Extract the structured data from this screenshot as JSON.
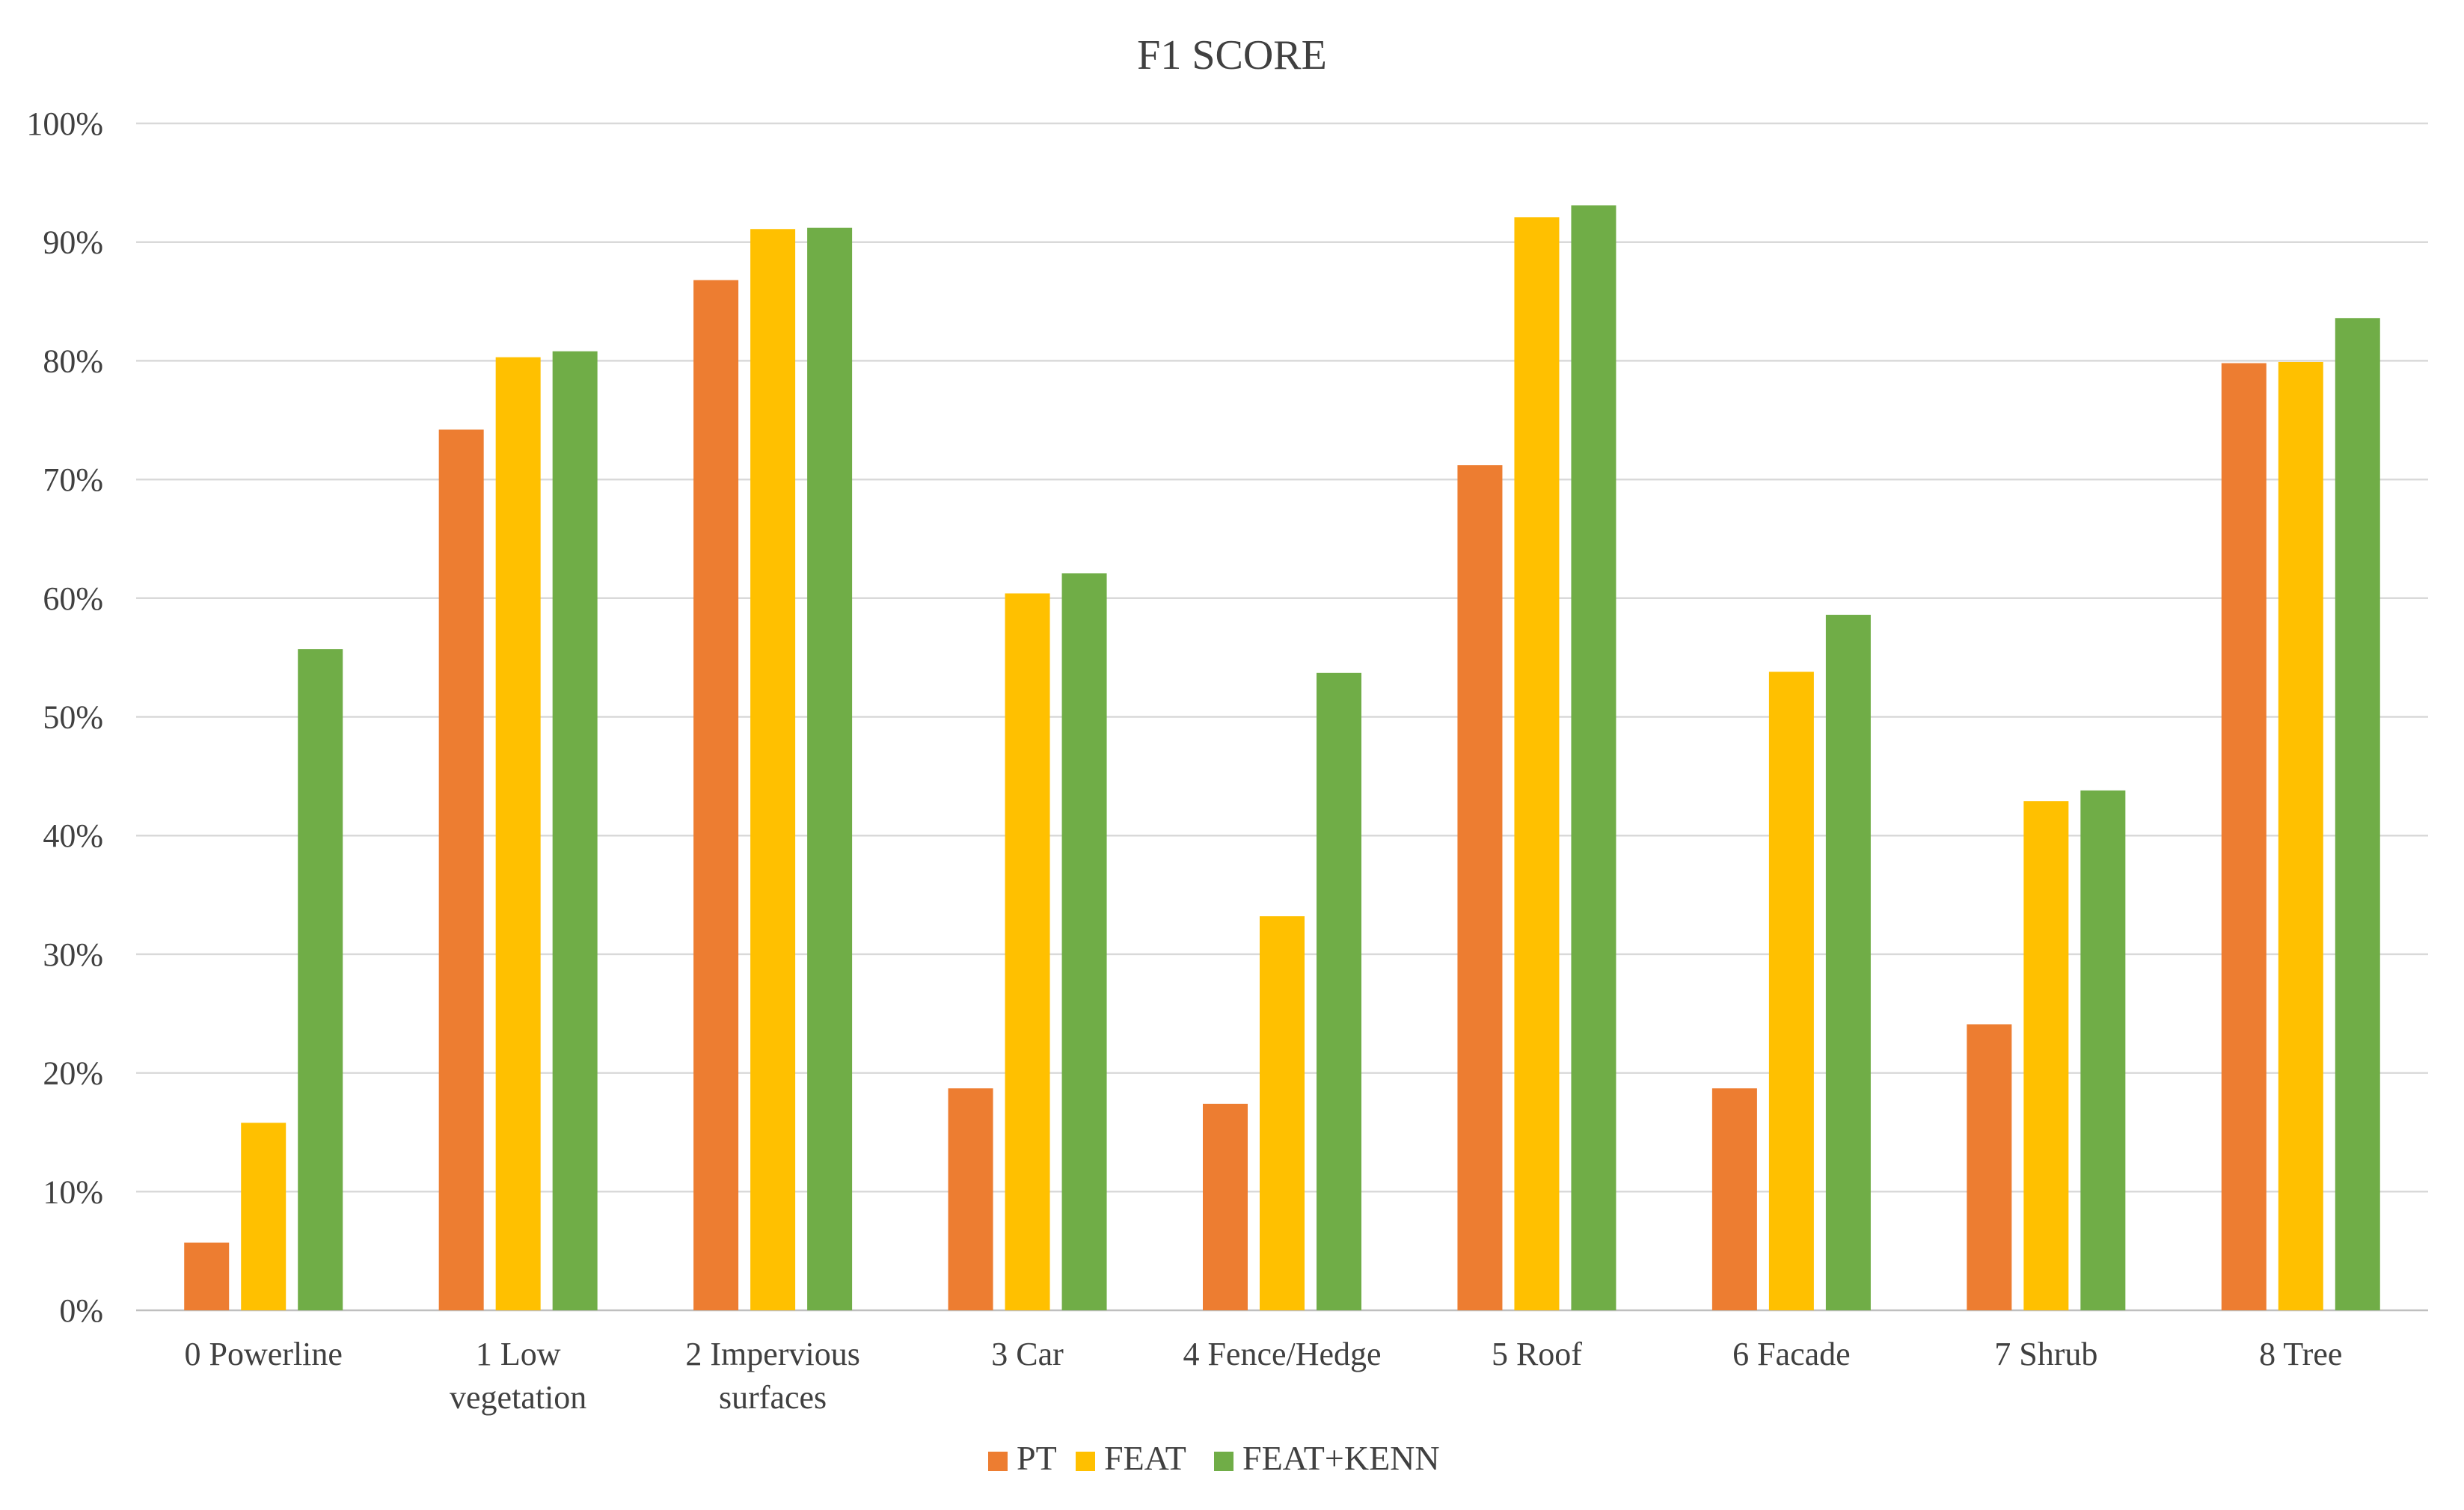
{
  "chart_data": {
    "type": "bar",
    "title": "F1 SCORE",
    "xlabel": "",
    "ylabel": "",
    "ylim": [
      0,
      100
    ],
    "y_ticks": [
      0,
      10,
      20,
      30,
      40,
      50,
      60,
      70,
      80,
      90,
      100
    ],
    "y_tick_labels": [
      "0%",
      "10%",
      "20%",
      "30%",
      "40%",
      "50%",
      "60%",
      "70%",
      "80%",
      "90%",
      "100%"
    ],
    "grid": true,
    "legend_position": "bottom-center",
    "categories": [
      [
        "0 Powerline"
      ],
      [
        "1 Low",
        "vegetation"
      ],
      [
        "2 Impervious",
        "surfaces"
      ],
      [
        "3 Car"
      ],
      [
        "4 Fence/Hedge"
      ],
      [
        "5 Roof"
      ],
      [
        "6 Facade"
      ],
      [
        "7 Shrub"
      ],
      [
        "8 Tree"
      ]
    ],
    "series": [
      {
        "name": "PT",
        "color": "#ed7d31",
        "values": [
          5.7,
          74.2,
          86.8,
          18.7,
          17.4,
          71.2,
          18.7,
          24.1,
          79.8
        ]
      },
      {
        "name": "FEAT",
        "color": "#ffc000",
        "values": [
          15.8,
          80.3,
          91.1,
          60.4,
          33.2,
          92.1,
          53.8,
          42.9,
          79.9
        ]
      },
      {
        "name": "FEAT+KENN",
        "color": "#70ad47",
        "values": [
          55.7,
          80.8,
          91.2,
          62.1,
          53.7,
          93.1,
          58.6,
          43.8,
          83.6
        ]
      }
    ]
  }
}
